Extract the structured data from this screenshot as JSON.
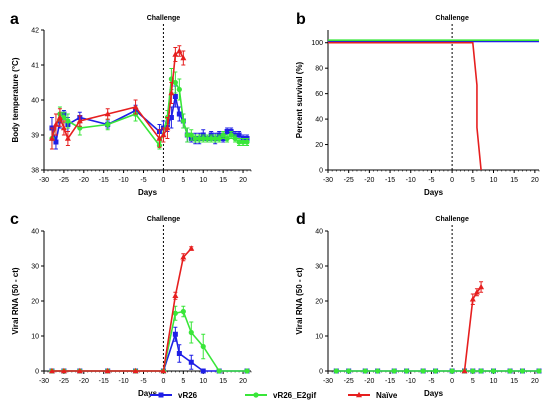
{
  "colors": {
    "vR26": "#1f1fe6",
    "vR26_E2gif": "#39e639",
    "Naive": "#e61f1f",
    "axis": "#000000"
  },
  "legend": [
    {
      "name": "vR26",
      "color": "#1f1fe6",
      "marker": "square"
    },
    {
      "name": "vR26_E2gif",
      "color": "#39e639",
      "marker": "circle"
    },
    {
      "name": "Naïve",
      "color": "#e61f1f",
      "marker": "triangle"
    }
  ],
  "chart_data": [
    {
      "panel": "a",
      "type": "line",
      "title": "",
      "annotation": "Challenge",
      "xlabel": "Days",
      "ylabel": "Body temperature (°C)",
      "xlim": [
        -30,
        22
      ],
      "ylim": [
        38,
        42
      ],
      "xticks": [
        "-30",
        "-25",
        "-20",
        "-15",
        "-10",
        "-5",
        "0",
        "5",
        "10",
        "15",
        "20"
      ],
      "yticks": [
        "38",
        "39",
        "40",
        "41",
        "42"
      ],
      "series": [
        {
          "name": "vR26",
          "color": "#1f1fe6",
          "x": [
            -28,
            -27,
            -26,
            -25,
            -24,
            -21,
            -14,
            -7,
            -1,
            0,
            1,
            2,
            3,
            4,
            5,
            6,
            7,
            8,
            9,
            10,
            11,
            12,
            13,
            14,
            15,
            16,
            17,
            18,
            19,
            20,
            21
          ],
          "y": [
            39.2,
            38.8,
            39.4,
            39.6,
            39.3,
            39.5,
            39.3,
            39.7,
            39.1,
            39.2,
            39.3,
            39.5,
            40.1,
            39.6,
            39.4,
            39.0,
            38.9,
            38.9,
            38.9,
            39.0,
            38.9,
            39.0,
            38.9,
            39.0,
            38.9,
            39.1,
            39.1,
            39.0,
            39.0,
            38.9,
            38.9
          ],
          "err": [
            0.3,
            0.2,
            0.2,
            0.1,
            0.2,
            0.15,
            0.1,
            0.15,
            0.2,
            0.2,
            0.2,
            0.3,
            0.3,
            0.2,
            0.2,
            0.2,
            0.1,
            0.15,
            0.15,
            0.15,
            0.1,
            0.1,
            0.15,
            0.1,
            0.1,
            0.1,
            0.1,
            0.1,
            0.1,
            0.1,
            0.1
          ]
        },
        {
          "name": "vR26_E2gif",
          "color": "#39e639",
          "x": [
            -28,
            -26,
            -25,
            -24,
            -21,
            -14,
            -7,
            -1,
            1,
            2,
            3,
            4,
            5,
            6,
            7,
            8,
            9,
            10,
            11,
            12,
            13,
            14,
            15,
            16,
            17,
            18,
            19,
            20,
            21
          ],
          "y": [
            38.9,
            39.6,
            39.5,
            39.4,
            39.2,
            39.3,
            39.6,
            38.7,
            39.5,
            40.6,
            40.5,
            40.3,
            39.4,
            39.0,
            39.0,
            38.9,
            38.9,
            38.9,
            38.9,
            38.9,
            38.9,
            38.9,
            39.0,
            38.9,
            39.0,
            38.9,
            38.8,
            38.8,
            38.8
          ],
          "err": [
            0.3,
            0.2,
            0.15,
            0.2,
            0.2,
            0.15,
            0.2,
            0.1,
            0.2,
            0.3,
            0.3,
            0.3,
            0.2,
            0.2,
            0.15,
            0.1,
            0.1,
            0.1,
            0.1,
            0.1,
            0.1,
            0.1,
            0.1,
            0.1,
            0.1,
            0.1,
            0.1,
            0.1,
            0.1
          ]
        },
        {
          "name": "Naïve",
          "color": "#e61f1f",
          "x": [
            -28,
            -27,
            -26,
            -25,
            -24,
            -21,
            -14,
            -7,
            -1,
            0,
            1,
            2,
            3,
            4,
            5
          ],
          "y": [
            38.9,
            39.3,
            39.5,
            39.2,
            38.9,
            39.4,
            39.6,
            39.8,
            38.9,
            39.0,
            39.2,
            40.2,
            41.3,
            41.4,
            41.2
          ],
          "err": [
            0.3,
            0.3,
            0.25,
            0.2,
            0.2,
            0.15,
            0.15,
            0.2,
            0.25,
            0.2,
            0.3,
            0.3,
            0.2,
            0.15,
            0.2
          ]
        }
      ]
    },
    {
      "panel": "b",
      "type": "line",
      "title": "",
      "annotation": "Challenge",
      "xlabel": "Days",
      "ylabel": "Percent survival (%)",
      "xlim": [
        -30,
        21
      ],
      "ylim": [
        0,
        110
      ],
      "xticks": [
        "-30",
        "-25",
        "-20",
        "-15",
        "-10",
        "-5",
        "0",
        "5",
        "10",
        "15",
        "20"
      ],
      "yticks": [
        "0",
        "20",
        "40",
        "60",
        "80",
        "100"
      ],
      "series": [
        {
          "name": "vR26",
          "color": "#1f1fe6",
          "step": true,
          "x": [
            -30,
            21
          ],
          "y": [
            101,
            101
          ]
        },
        {
          "name": "vR26_E2gif",
          "color": "#39e639",
          "step": true,
          "x": [
            -30,
            21
          ],
          "y": [
            102,
            102
          ]
        },
        {
          "name": "Naïve",
          "color": "#e61f1f",
          "step": true,
          "x": [
            -30,
            5,
            5,
            6,
            6,
            7
          ],
          "y": [
            100,
            100,
            100,
            66.7,
            33.3,
            0
          ]
        }
      ]
    },
    {
      "panel": "c",
      "type": "line",
      "title": "",
      "annotation": "Challenge",
      "xlabel": "Days",
      "ylabel": "Viral RNA (50 - ct)",
      "xlim": [
        -30,
        22
      ],
      "ylim": [
        0,
        40
      ],
      "xticks": [
        "-30",
        "-25",
        "-20",
        "-15",
        "-10",
        "-5",
        "0",
        "5",
        "10",
        "15",
        "20"
      ],
      "yticks": [
        "0",
        "10",
        "20",
        "30",
        "40"
      ],
      "series": [
        {
          "name": "vR26",
          "color": "#1f1fe6",
          "x": [
            -28,
            -25,
            -21,
            -14,
            -7,
            0,
            3,
            4,
            7,
            10,
            14,
            21
          ],
          "y": [
            0,
            0,
            0,
            0,
            0,
            0,
            10.5,
            5,
            2.5,
            0,
            0,
            0
          ],
          "err": [
            0,
            0,
            0,
            0,
            0,
            0,
            2,
            2.5,
            2,
            0,
            0,
            0
          ]
        },
        {
          "name": "vR26_E2gif",
          "color": "#39e639",
          "x": [
            -28,
            -25,
            -21,
            -14,
            -7,
            0,
            3,
            5,
            7,
            10,
            14,
            21
          ],
          "y": [
            0,
            0,
            0,
            0,
            0,
            0,
            16.5,
            17,
            11,
            7,
            0,
            0
          ],
          "err": [
            0,
            0,
            0,
            0,
            0,
            0,
            2,
            1.5,
            3,
            3.5,
            0,
            0
          ]
        },
        {
          "name": "Naïve",
          "color": "#e61f1f",
          "x": [
            -28,
            -25,
            -21,
            -14,
            -7,
            0,
            3,
            5,
            7
          ],
          "y": [
            0,
            0,
            0,
            0,
            0,
            0,
            21.5,
            32.5,
            35
          ],
          "err": [
            0,
            0,
            0,
            0,
            0,
            0,
            1,
            1,
            0.5
          ]
        }
      ]
    },
    {
      "panel": "d",
      "type": "line",
      "title": "",
      "annotation": "Challenge",
      "xlabel": "Days",
      "ylabel": "Viral RNA (50 - ct)",
      "xlim": [
        -30,
        21
      ],
      "ylim": [
        0,
        40
      ],
      "xticks": [
        "-30",
        "-25",
        "-20",
        "-15",
        "-10",
        "-5",
        "0",
        "5",
        "10",
        "15",
        "20"
      ],
      "yticks": [
        "0",
        "10",
        "20",
        "30",
        "40"
      ],
      "series": [
        {
          "name": "vR26",
          "color": "#1f1fe6",
          "x": [
            -28,
            -25,
            -21,
            -18,
            -14,
            -11,
            -7,
            -4,
            0,
            3,
            5,
            7,
            10,
            14,
            17,
            21
          ],
          "y": [
            0,
            0,
            0,
            0,
            0,
            0,
            0,
            0,
            0,
            0,
            0,
            0,
            0,
            0,
            0,
            0
          ]
        },
        {
          "name": "vR26_E2gif",
          "color": "#39e639",
          "x": [
            -28,
            -25,
            -21,
            -18,
            -14,
            -11,
            -7,
            -4,
            0,
            3,
            5,
            7,
            10,
            14,
            17,
            21
          ],
          "y": [
            0,
            0,
            0,
            0,
            0,
            0,
            0,
            0,
            0,
            0,
            0,
            0,
            0,
            0,
            0,
            0
          ]
        },
        {
          "name": "Naïve",
          "color": "#e61f1f",
          "x": [
            3,
            5,
            6,
            7
          ],
          "y": [
            0,
            20.5,
            22.5,
            24
          ],
          "err": [
            0,
            1.5,
            1,
            1.5
          ]
        }
      ]
    }
  ]
}
